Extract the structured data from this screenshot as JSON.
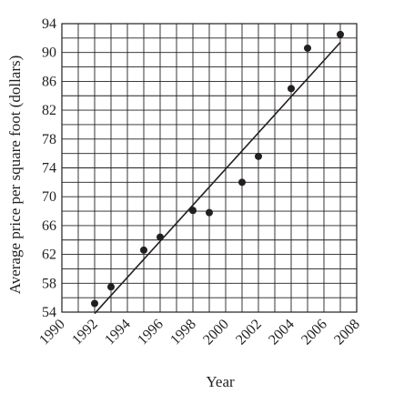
{
  "chart_data": {
    "type": "scatter",
    "xlabel": "Year",
    "ylabel": "Average price per square foot (dollars)",
    "xlim": [
      1990,
      2008
    ],
    "ylim": [
      54,
      94
    ],
    "x_ticks": [
      1990,
      1992,
      1994,
      1996,
      1998,
      2000,
      2002,
      2004,
      2006,
      2008
    ],
    "y_ticks": [
      54,
      58,
      62,
      66,
      70,
      74,
      78,
      82,
      86,
      90,
      94
    ],
    "x_tick_labels": [
      "1990",
      "1992",
      "1994",
      "1996",
      "1998",
      "2000",
      "2002",
      "2004",
      "2006",
      "2008"
    ],
    "y_tick_labels": [
      "54",
      "58",
      "62",
      "66",
      "70",
      "74",
      "78",
      "82",
      "86",
      "90",
      "94"
    ],
    "x_grid_step": 1,
    "y_grid_step": 2,
    "grid": true,
    "points": [
      {
        "x": 1992,
        "y": 55.2
      },
      {
        "x": 1993,
        "y": 57.5
      },
      {
        "x": 1995,
        "y": 62.6
      },
      {
        "x": 1996,
        "y": 64.4
      },
      {
        "x": 1998,
        "y": 68.1
      },
      {
        "x": 1999,
        "y": 67.8
      },
      {
        "x": 2001,
        "y": 72.0
      },
      {
        "x": 2002,
        "y": 75.6
      },
      {
        "x": 2004,
        "y": 85.0
      },
      {
        "x": 2005,
        "y": 90.6
      },
      {
        "x": 2007,
        "y": 92.5
      }
    ],
    "trend_line": {
      "x1": 1992,
      "y1": 53.8,
      "x2": 2007,
      "y2": 91.4
    },
    "colors": {
      "ink": "#231f20",
      "background": "#ffffff"
    }
  }
}
